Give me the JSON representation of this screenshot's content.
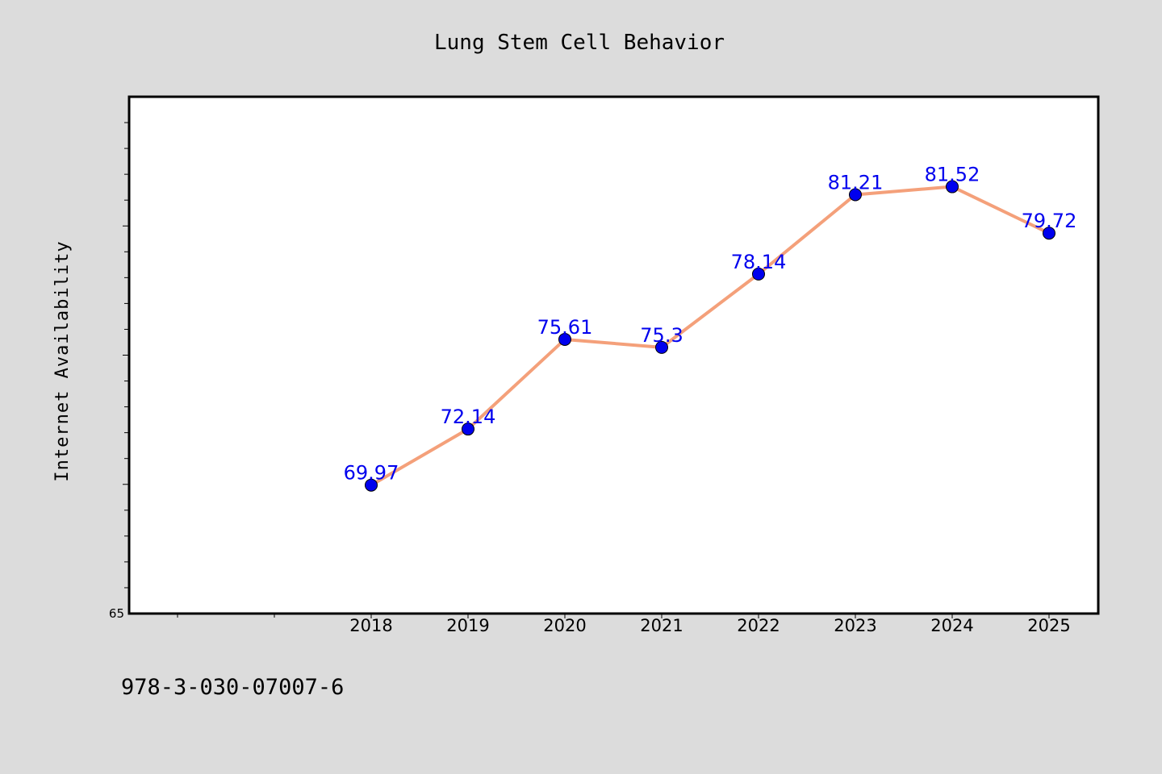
{
  "chart_data": {
    "type": "line",
    "title": "Lung Stem Cell Behavior",
    "xlabel": "",
    "ylabel": "Internet Availability",
    "categories": [
      "2018",
      "2019",
      "2020",
      "2021",
      "2022",
      "2023",
      "2024",
      "2025"
    ],
    "series": [
      {
        "values": [
          69.97,
          72.14,
          75.61,
          75.3,
          78.14,
          81.21,
          81.52,
          79.72
        ]
      }
    ],
    "data_labels": [
      "69.97",
      "72.14",
      "75.61",
      "75.3",
      "78.14",
      "81.21",
      "81.52",
      "79.72"
    ],
    "ylim": [
      65,
      85
    ],
    "yticks_labeled": [
      "65"
    ],
    "grid": false,
    "legend": "none",
    "colors": {
      "line": "#f4a07a",
      "marker": "#0000ee",
      "label": "#0000ee",
      "plot_bg": "#ffffff",
      "page_bg": "#dcdcdc"
    }
  },
  "footer": {
    "isbn": "978-3-030-07007-6"
  }
}
